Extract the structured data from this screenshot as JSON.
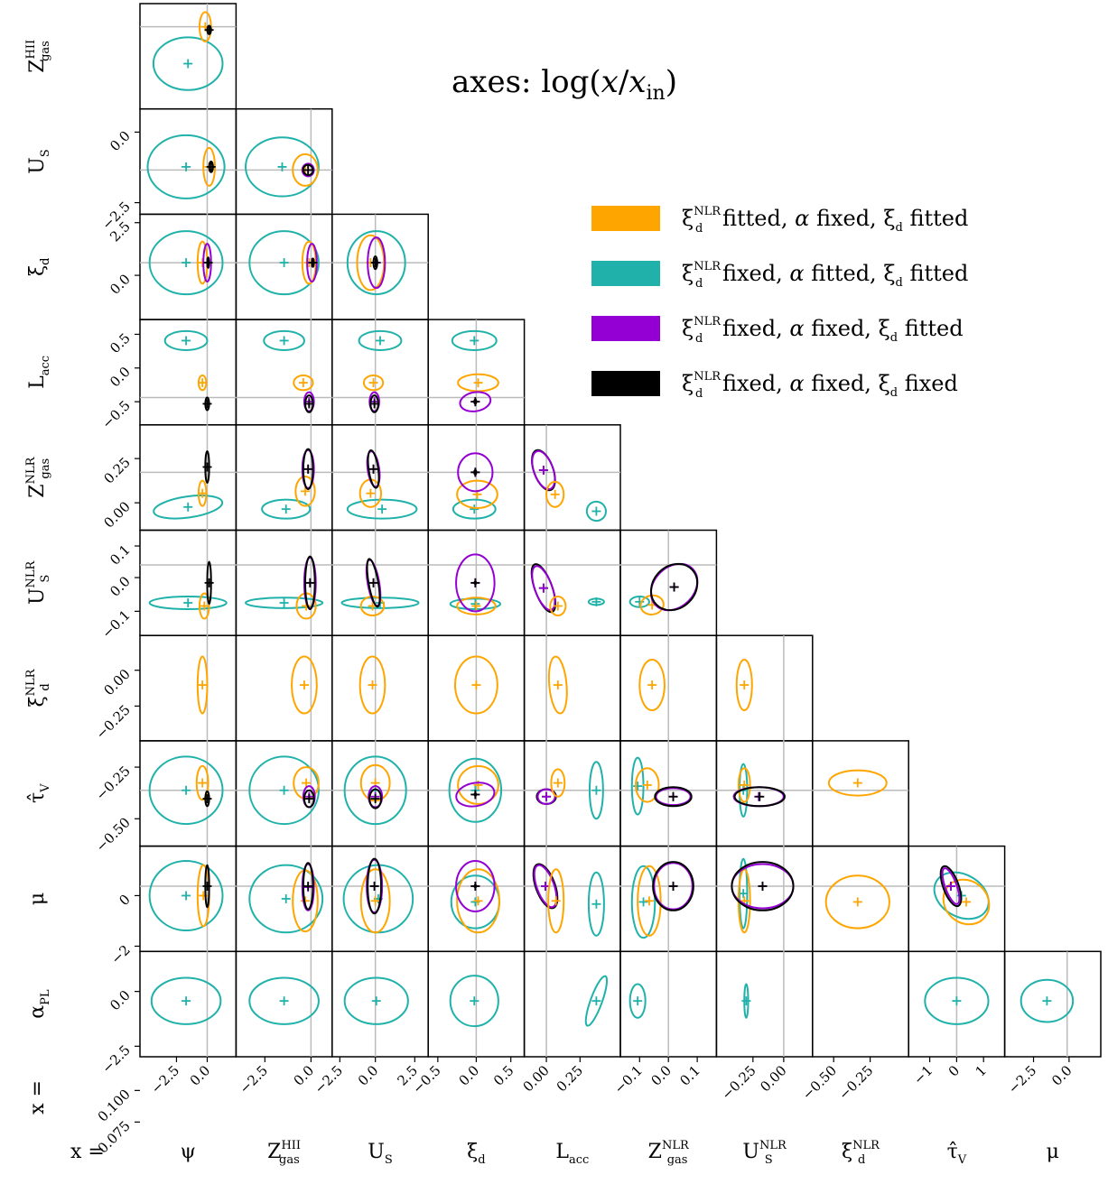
{
  "chart_data": {
    "type": "scatter",
    "title": "axes: log(x/x_in)",
    "title_parts": {
      "pre": "axes: log(",
      "x": "x",
      "slash": "/",
      "x2": "x",
      "sub": "in",
      "post": ")"
    },
    "x_prefix": "x =",
    "grid": false,
    "legend_position": "top-right",
    "parameters": [
      {
        "id": "psi",
        "label": "ψ",
        "sub": "",
        "sup": ""
      },
      {
        "id": "zgas_hii",
        "label": "Z",
        "sub": "gas",
        "sup": "HII"
      },
      {
        "id": "us",
        "label": "U",
        "sub": "S",
        "sup": ""
      },
      {
        "id": "xid",
        "label": "ξ",
        "sub": "d",
        "sup": ""
      },
      {
        "id": "lacc",
        "label": "L",
        "sub": "acc",
        "sup": ""
      },
      {
        "id": "zgas_nlr",
        "label": "Z",
        "sub": "gas",
        "sup": "NLR"
      },
      {
        "id": "us_nlr",
        "label": "U",
        "sub": "S",
        "sup": "NLR"
      },
      {
        "id": "xid_nlr",
        "label": "ξ",
        "sub": "d",
        "sup": "NLR"
      },
      {
        "id": "tauv",
        "label": "τ̂",
        "sub": "V",
        "sup": ""
      },
      {
        "id": "mu",
        "label": "μ",
        "sub": "",
        "sup": ""
      },
      {
        "id": "alpha_pl",
        "label": "α",
        "sub": "PL",
        "sup": ""
      }
    ],
    "x_ticks": [
      [
        "−2.5",
        "0.0"
      ],
      [
        "−2.5",
        "0.0"
      ],
      [
        "−2.5",
        "0.0",
        "2.5"
      ],
      [
        "−0.5",
        "0.0",
        "0.5"
      ],
      [
        "0.00",
        "0.25"
      ],
      [
        "−0.1",
        "0.0",
        "0.1"
      ],
      [
        "−0.25",
        "0.00"
      ],
      [
        "−0.50",
        "−0.25"
      ],
      [
        "−1",
        "0",
        "1"
      ],
      [
        "−2.5",
        "0.0"
      ]
    ],
    "y_ticks": [
      [
        "0.0",
        "−2.5"
      ],
      [
        "2.5",
        "0.0"
      ],
      [
        "0.5",
        "0.0",
        "−0.5"
      ],
      [
        "0.25",
        "0.00"
      ],
      [
        "0.1",
        "0.0",
        "−0.1"
      ],
      [
        "0.00",
        "−0.25"
      ],
      [
        "−0.25",
        "−0.50"
      ],
      [
        "0",
        "−2"
      ],
      [
        "0.0",
        "−2.5"
      ],
      [
        "0.100",
        "0.075"
      ]
    ],
    "series": [
      {
        "name": "ξ_d^NLR fitted, α fixed, ξ_d fitted",
        "color": "#ffa500"
      },
      {
        "name": "ξ_d^NLR fixed, α fitted, ξ_d fitted",
        "color": "#20b2aa"
      },
      {
        "name": "ξ_d^NLR fixed, α fixed, ξ_d fitted",
        "color": "#9400d3"
      },
      {
        "name": "ξ_d^NLR fixed, α fixed, ξ_d fixed",
        "color": "#000000"
      }
    ],
    "legend_items": [
      {
        "pre": "ξ",
        "sup": "NLR",
        "sub": "d",
        "mid1": " fitted, ",
        "a": "α",
        "mid2": " fixed, ",
        "b": "ξ",
        "bsub": "d",
        "end": " fitted"
      },
      {
        "pre": "ξ",
        "sup": "NLR",
        "sub": "d",
        "mid1": " fixed, ",
        "a": "α",
        "mid2": " fitted, ",
        "b": "ξ",
        "bsub": "d",
        "end": " fitted"
      },
      {
        "pre": "ξ",
        "sup": "NLR",
        "sub": "d",
        "mid1": " fixed, ",
        "a": "α",
        "mid2": " fixed, ",
        "b": "ξ",
        "bsub": "d",
        "end": " fitted"
      },
      {
        "pre": "ξ",
        "sup": "NLR",
        "sub": "d",
        "mid1": " fixed, ",
        "a": "α",
        "mid2": " fixed, ",
        "b": "ξ",
        "bsub": "d",
        "end": " fixed"
      }
    ]
  }
}
